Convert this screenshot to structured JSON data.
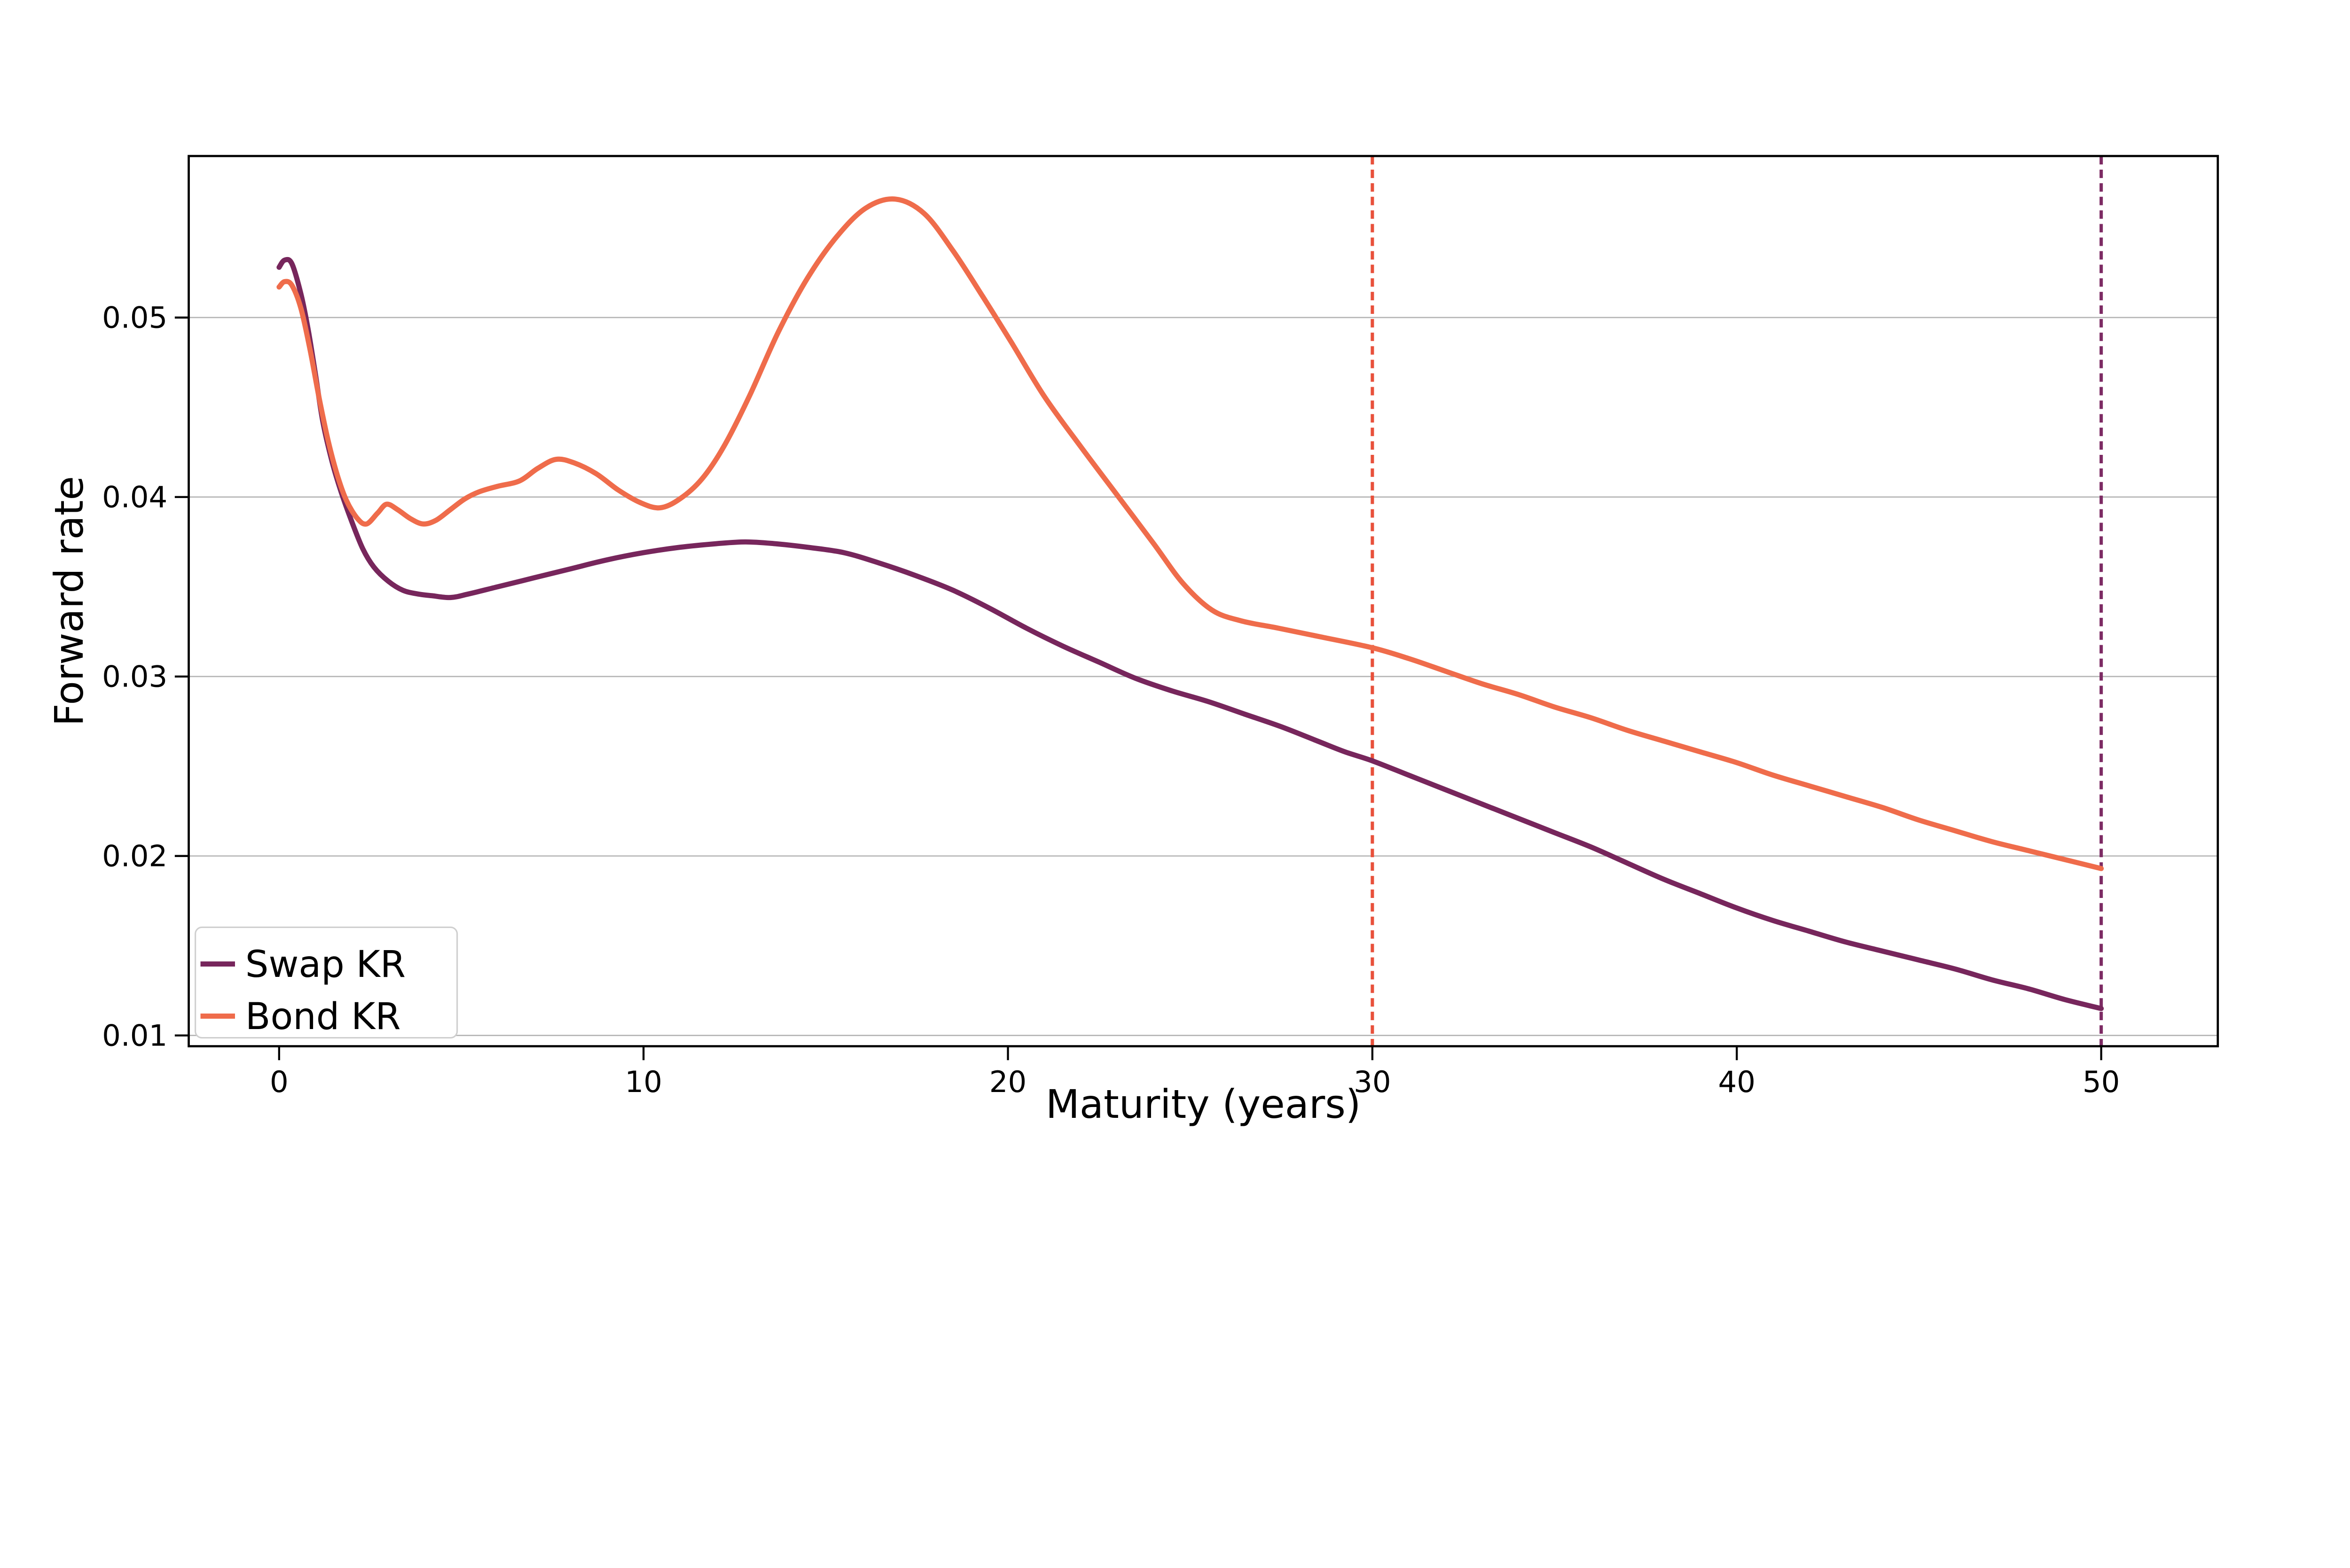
{
  "chart_data": {
    "type": "line",
    "title": "",
    "xlabel": "Maturity (years)",
    "ylabel": "Forward rate",
    "xlim": [
      -2.48,
      53.2
    ],
    "ylim": [
      0.0094,
      0.059
    ],
    "xticks": [
      0,
      10,
      20,
      30,
      40,
      50
    ],
    "xtick_labels": [
      "0",
      "10",
      "20",
      "30",
      "40",
      "50"
    ],
    "yticks": [
      0.01,
      0.02,
      0.03,
      0.04,
      0.05
    ],
    "ytick_labels": [
      "0.01",
      "0.02",
      "0.03",
      "0.04",
      "0.05"
    ],
    "grid": "horizontal-only",
    "grid_color": "#b6b6b6",
    "spine_color": "#000000",
    "background_color": "#ffffff",
    "legend_position": "lower-left",
    "series": [
      {
        "name": "Swap KR",
        "color": "#77265c",
        "style": "solid",
        "x": [
          0,
          0.15,
          0.35,
          0.6,
          0.8,
          1.0,
          1.2,
          1.45,
          1.7,
          2.0,
          2.3,
          2.6,
          3.0,
          3.4,
          3.8,
          4.2,
          4.7,
          5.2,
          6.0,
          7.0,
          8.0,
          9.0,
          10.0,
          11.0,
          12.0,
          12.8,
          13.6,
          14.5,
          15.5,
          16.5,
          17.5,
          18.5,
          19.5,
          20.5,
          21.5,
          22.5,
          23.5,
          24.5,
          25.5,
          26.5,
          27.5,
          28.5,
          29.25,
          30.0,
          31.0,
          32.0,
          33.0,
          34.0,
          35.0,
          36.0,
          37.0,
          38.0,
          39.0,
          40.0,
          41.0,
          42.0,
          43.0,
          44.0,
          45.0,
          46.0,
          47.0,
          48.0,
          49.0,
          50.0
        ],
        "y": [
          0.0528,
          0.0532,
          0.053,
          0.0513,
          0.0493,
          0.0468,
          0.0442,
          0.042,
          0.0403,
          0.0386,
          0.0371,
          0.0361,
          0.0353,
          0.0348,
          0.0346,
          0.0345,
          0.0344,
          0.0346,
          0.035,
          0.0355,
          0.036,
          0.0365,
          0.0369,
          0.0372,
          0.0374,
          0.0375,
          0.0374,
          0.0372,
          0.0369,
          0.0363,
          0.0356,
          0.0348,
          0.0338,
          0.0327,
          0.0317,
          0.0308,
          0.0299,
          0.0292,
          0.0286,
          0.0279,
          0.0272,
          0.0264,
          0.0258,
          0.0253,
          0.0245,
          0.0237,
          0.0229,
          0.0221,
          0.0213,
          0.0205,
          0.0196,
          0.0187,
          0.0179,
          0.0171,
          0.0164,
          0.0158,
          0.0152,
          0.0147,
          0.0142,
          0.0137,
          0.0131,
          0.0126,
          0.012,
          0.0115
        ]
      },
      {
        "name": "Bond KR",
        "color": "#ef6c4b",
        "style": "solid",
        "x": [
          0,
          0.15,
          0.35,
          0.6,
          0.85,
          1.1,
          1.35,
          1.6,
          1.85,
          2.15,
          2.4,
          2.7,
          2.95,
          3.25,
          3.6,
          3.95,
          4.3,
          4.7,
          5.1,
          5.5,
          6.0,
          6.6,
          7.1,
          7.6,
          8.1,
          8.7,
          9.3,
          9.9,
          10.45,
          11.0,
          11.6,
          12.2,
          12.9,
          13.7,
          14.5,
          15.3,
          16.1,
          16.9,
          17.7,
          18.5,
          19.3,
          20.1,
          21.0,
          22.0,
          23.0,
          24.0,
          24.8,
          25.6,
          26.4,
          27.4,
          28.6,
          30.0,
          31.0,
          32.0,
          33.0,
          34.0,
          35.0,
          36.0,
          37.0,
          38.0,
          39.0,
          40.0,
          41.0,
          42.0,
          43.0,
          44.0,
          45.0,
          46.0,
          47.0,
          48.0,
          49.0,
          50.0
        ],
        "y": [
          0.0517,
          0.052,
          0.0518,
          0.0505,
          0.0482,
          0.0455,
          0.0431,
          0.0412,
          0.0398,
          0.0388,
          0.0385,
          0.0391,
          0.0396,
          0.0393,
          0.0388,
          0.0385,
          0.0387,
          0.0393,
          0.0399,
          0.0403,
          0.0406,
          0.0409,
          0.0416,
          0.0421,
          0.0419,
          0.0413,
          0.0404,
          0.0397,
          0.0394,
          0.0399,
          0.041,
          0.0428,
          0.0456,
          0.0492,
          0.0522,
          0.0545,
          0.0561,
          0.0566,
          0.0558,
          0.0537,
          0.0512,
          0.0486,
          0.0456,
          0.0428,
          0.0401,
          0.0374,
          0.0352,
          0.0337,
          0.0331,
          0.0327,
          0.0322,
          0.0316,
          0.031,
          0.0303,
          0.0296,
          0.029,
          0.0283,
          0.0277,
          0.027,
          0.0264,
          0.0258,
          0.0252,
          0.0245,
          0.0239,
          0.0233,
          0.0227,
          0.022,
          0.0214,
          0.0208,
          0.0203,
          0.0198,
          0.0193
        ]
      }
    ],
    "vlines": [
      {
        "x": 30,
        "color": "#e8503b",
        "style": "dashed"
      },
      {
        "x": 50,
        "color": "#7d2b64",
        "style": "dashed"
      }
    ],
    "legend": {
      "items": [
        {
          "label": "Swap KR",
          "color": "#77265c"
        },
        {
          "label": "Bond KR",
          "color": "#ef6c4b"
        }
      ],
      "border_color": "#cfcfcf",
      "fill_color": "#ffffff"
    }
  }
}
